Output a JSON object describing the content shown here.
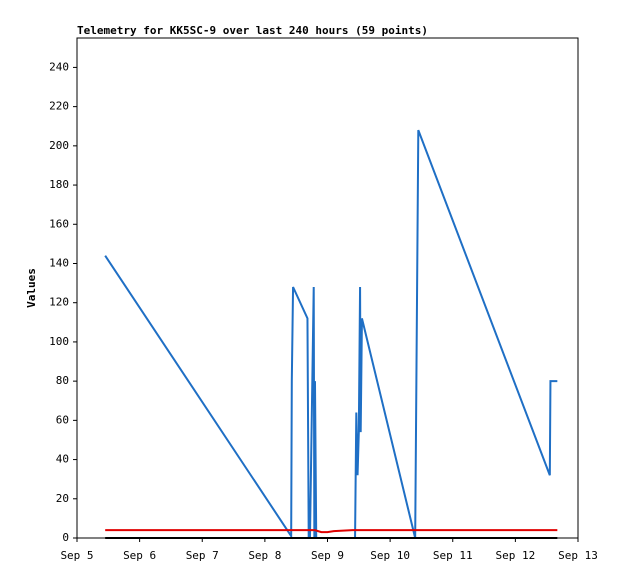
{
  "chart_data": {
    "type": "line",
    "title": "Telemetry for KK5SC-9 over last 240 hours (59 points)",
    "y_label": "Values",
    "xlim": [
      0,
      8
    ],
    "ylim": [
      0,
      255
    ],
    "xticks": [
      {
        "value": 0,
        "label": "Sep 5"
      },
      {
        "value": 1,
        "label": "Sep 6"
      },
      {
        "value": 2,
        "label": "Sep 7"
      },
      {
        "value": 3,
        "label": "Sep 8"
      },
      {
        "value": 4,
        "label": "Sep 9"
      },
      {
        "value": 5,
        "label": "Sep 10"
      },
      {
        "value": 6,
        "label": "Sep 11"
      },
      {
        "value": 7,
        "label": "Sep 12"
      },
      {
        "value": 8,
        "label": "Sep 13"
      }
    ],
    "yticks": [
      0,
      20,
      40,
      60,
      80,
      100,
      120,
      140,
      160,
      180,
      200,
      220,
      240
    ],
    "series": [
      {
        "color": "#1f6fc5",
        "x": [
          0.45,
          3.42,
          3.43,
          3.45,
          3.68,
          3.69,
          3.7,
          3.71,
          3.72,
          3.78,
          3.79,
          3.8,
          3.81,
          3.82,
          4.44,
          4.46,
          4.48,
          4.5,
          4.52,
          4.53,
          4.55,
          5.4,
          5.45,
          7.55,
          7.56,
          7.67
        ],
        "values": [
          144,
          1,
          80,
          128,
          112,
          56,
          0,
          8,
          0,
          128,
          0,
          80,
          40,
          0,
          0,
          64,
          32,
          54,
          128,
          54,
          112,
          0,
          208,
          32,
          80,
          80
        ]
      },
      {
        "color": "#e00000",
        "x": [
          0.45,
          3.8,
          3.9,
          4.0,
          4.1,
          4.4,
          7.67
        ],
        "values": [
          4,
          4,
          3,
          3,
          3.5,
          4,
          4
        ]
      },
      {
        "color": "#000000",
        "x": [
          0.45,
          7.67
        ],
        "values": [
          0,
          0
        ]
      }
    ]
  }
}
